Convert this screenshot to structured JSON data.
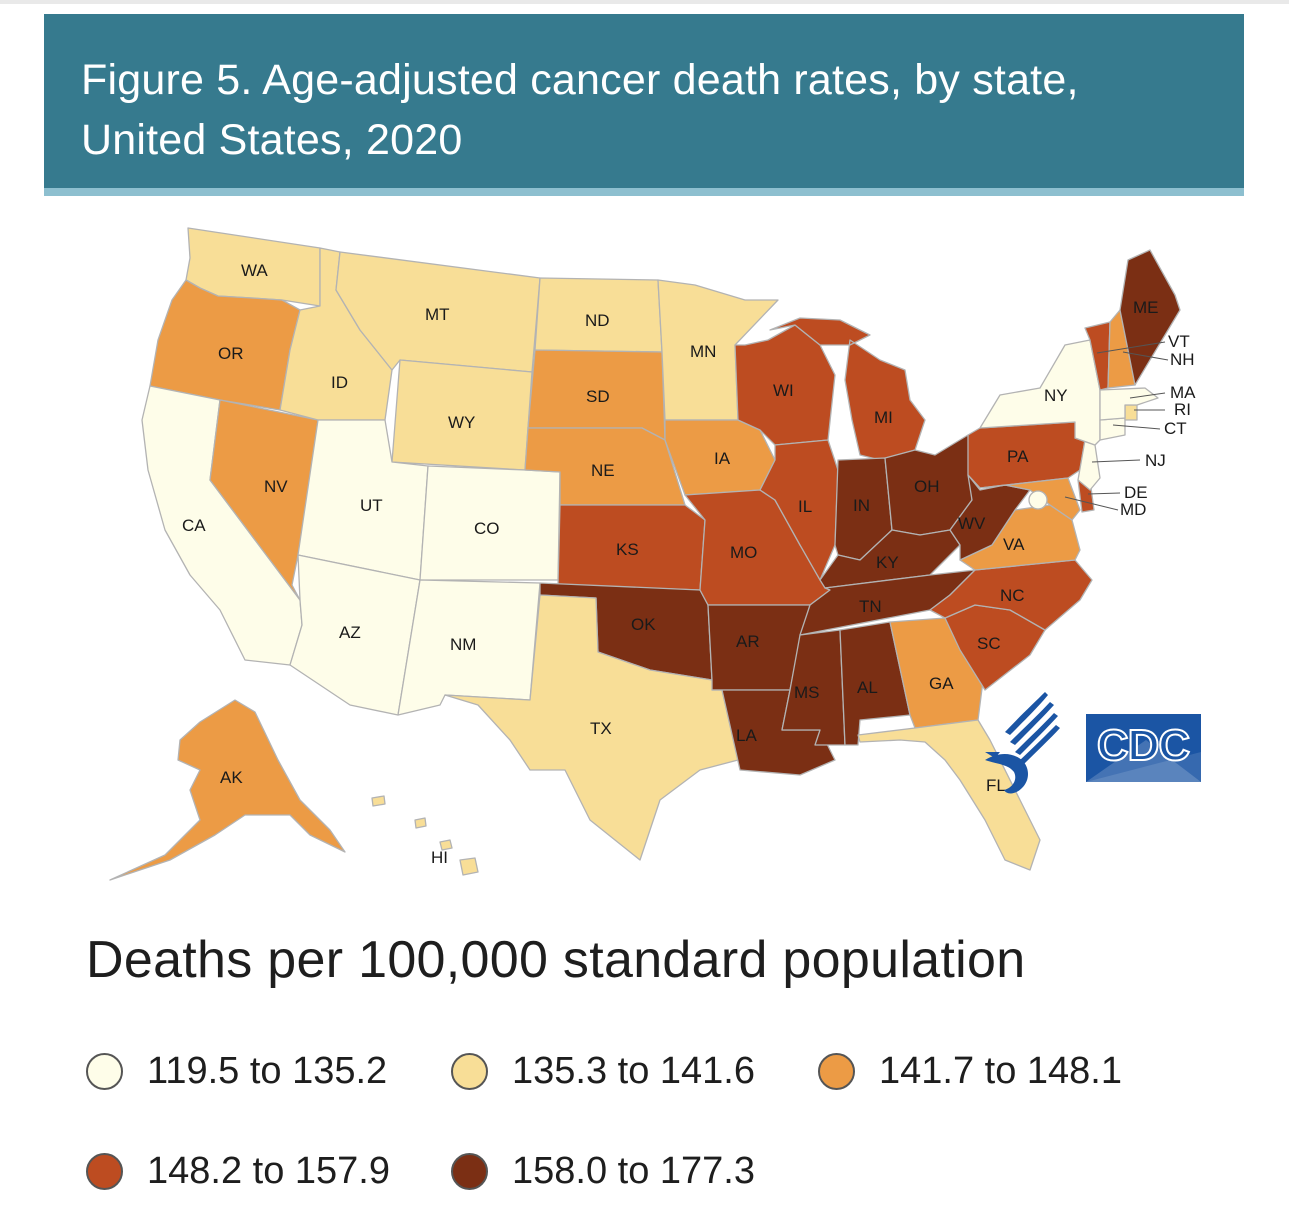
{
  "title": "Figure 5. Age-adjusted cancer death rates, by state, United States, 2020",
  "legend": {
    "title": "Deaths per 100,000 standard population",
    "items": [
      {
        "label": "119.5 to 135.2",
        "color": "#fefde9"
      },
      {
        "label": "135.3 to 141.6",
        "color": "#f8de97"
      },
      {
        "label": "141.7 to 148.1",
        "color": "#ec9b45"
      },
      {
        "label": "148.2 to 157.9",
        "color": "#bd4c21"
      },
      {
        "label": "158.0 to 177.3",
        "color": "#7b2f14"
      }
    ]
  },
  "logos": {
    "cdc": "CDC",
    "hhs_icon": "hhs-eagle-icon"
  },
  "colors": {
    "header_bg": "#367a8e",
    "border": "#b3b3b3",
    "cdc_blue": "#1b55a4"
  },
  "states": {
    "WA": 1,
    "OR": 2,
    "CA": 0,
    "NV": 2,
    "ID": 1,
    "MT": 1,
    "WY": 1,
    "UT": 0,
    "AZ": 0,
    "CO": 0,
    "NM": 0,
    "ND": 1,
    "SD": 2,
    "NE": 2,
    "KS": 3,
    "OK": 4,
    "TX": 1,
    "MN": 1,
    "IA": 2,
    "MO": 3,
    "AR": 4,
    "LA": 4,
    "WI": 3,
    "IL": 3,
    "MI": 3,
    "IN": 4,
    "OH": 4,
    "KY": 4,
    "TN": 4,
    "MS": 4,
    "AL": 4,
    "GA": 2,
    "FL": 1,
    "SC": 3,
    "NC": 3,
    "VA": 2,
    "WV": 4,
    "MD": 2,
    "DE": 3,
    "DC": 0,
    "PA": 3,
    "NJ": 0,
    "NY": 0,
    "CT": 0,
    "RI": 1,
    "MA": 0,
    "VT": 3,
    "NH": 2,
    "ME": 4,
    "AK": 2,
    "HI": 1
  }
}
